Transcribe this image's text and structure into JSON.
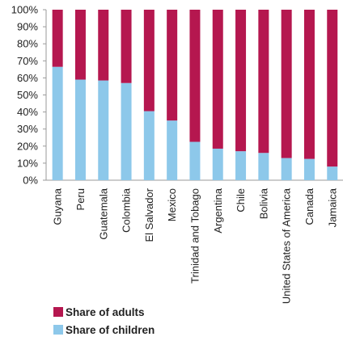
{
  "chart_data": {
    "type": "bar",
    "stacked": true,
    "percent_scale": true,
    "categories": [
      "Guyana",
      "Peru",
      "Guatemala",
      "Colombia",
      "El Salvador",
      "Mexico",
      "Trinidad and Tobago",
      "Argentina",
      "Chile",
      "Bolivia",
      "United States of America",
      "Canada",
      "Jamaica"
    ],
    "series": [
      {
        "name": "Share of children",
        "color": "#8dc8ea",
        "values": [
          66.5,
          59,
          58.5,
          57,
          40.5,
          35,
          22.5,
          18.5,
          17,
          16,
          13,
          12.5,
          8
        ]
      },
      {
        "name": "Share of adults",
        "color": "#b5174f",
        "values": [
          33.5,
          41,
          41.5,
          43,
          59.5,
          65,
          77.5,
          81.5,
          83,
          84,
          87,
          87.5,
          92
        ]
      }
    ],
    "ylim": [
      0,
      100
    ],
    "yticks": [
      "0%",
      "10%",
      "20%",
      "30%",
      "40%",
      "50%",
      "60%",
      "70%",
      "80%",
      "90%",
      "100%"
    ],
    "grid": false,
    "legend": {
      "position": "bottom-left",
      "entries": [
        "Share of adults",
        "Share of children"
      ]
    }
  }
}
